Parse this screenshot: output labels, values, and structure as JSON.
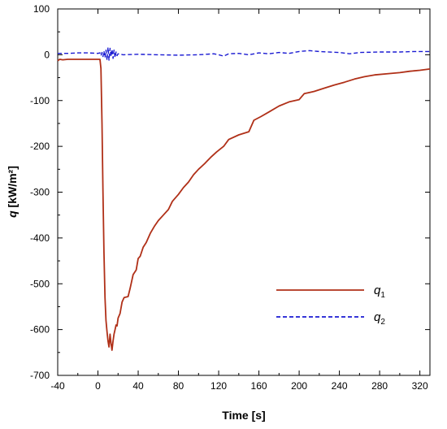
{
  "chart_data": {
    "type": "line",
    "title": "",
    "xlabel": "Time [s]",
    "ylabel_var": "q",
    "ylabel_unit": " [kW/m²]",
    "xlim": [
      -40,
      330
    ],
    "ylim": [
      -700,
      100
    ],
    "x_ticks": [
      -40,
      0,
      40,
      80,
      120,
      160,
      200,
      240,
      280,
      320
    ],
    "y_ticks": [
      100,
      0,
      -100,
      -200,
      -300,
      -400,
      -500,
      -600,
      -700
    ],
    "grid": false,
    "legend_position": "lower-right",
    "series": [
      {
        "name": "q",
        "name_sub": "1",
        "color": "#b03018",
        "dash": "solid",
        "points": [
          [
            -40,
            -13
          ],
          [
            -38,
            -10
          ],
          [
            -35,
            -11
          ],
          [
            -30,
            -10
          ],
          [
            -20,
            -10
          ],
          [
            -10,
            -10
          ],
          [
            0,
            -10
          ],
          [
            2,
            -10
          ],
          [
            3,
            -30
          ],
          [
            4,
            -150
          ],
          [
            5,
            -300
          ],
          [
            6,
            -430
          ],
          [
            7,
            -530
          ],
          [
            8,
            -580
          ],
          [
            9,
            -605
          ],
          [
            10,
            -625
          ],
          [
            11,
            -638
          ],
          [
            12,
            -610
          ],
          [
            13,
            -630
          ],
          [
            14,
            -645
          ],
          [
            15,
            -625
          ],
          [
            16,
            -610
          ],
          [
            17,
            -600
          ],
          [
            18,
            -590
          ],
          [
            19,
            -592
          ],
          [
            20,
            -575
          ],
          [
            22,
            -565
          ],
          [
            24,
            -540
          ],
          [
            26,
            -530
          ],
          [
            30,
            -528
          ],
          [
            32,
            -510
          ],
          [
            35,
            -480
          ],
          [
            38,
            -470
          ],
          [
            40,
            -445
          ],
          [
            42,
            -440
          ],
          [
            45,
            -420
          ],
          [
            48,
            -410
          ],
          [
            52,
            -390
          ],
          [
            56,
            -375
          ],
          [
            60,
            -362
          ],
          [
            65,
            -350
          ],
          [
            70,
            -338
          ],
          [
            74,
            -320
          ],
          [
            80,
            -305
          ],
          [
            85,
            -290
          ],
          [
            90,
            -278
          ],
          [
            95,
            -262
          ],
          [
            100,
            -250
          ],
          [
            106,
            -238
          ],
          [
            112,
            -224
          ],
          [
            118,
            -212
          ],
          [
            125,
            -200
          ],
          [
            130,
            -185
          ],
          [
            140,
            -175
          ],
          [
            150,
            -168
          ],
          [
            155,
            -143
          ],
          [
            162,
            -135
          ],
          [
            170,
            -125
          ],
          [
            180,
            -112
          ],
          [
            190,
            -103
          ],
          [
            200,
            -98
          ],
          [
            205,
            -85
          ],
          [
            215,
            -80
          ],
          [
            225,
            -73
          ],
          [
            235,
            -66
          ],
          [
            245,
            -60
          ],
          [
            255,
            -53
          ],
          [
            265,
            -48
          ],
          [
            275,
            -44
          ],
          [
            290,
            -41
          ],
          [
            300,
            -39
          ],
          [
            310,
            -36
          ],
          [
            320,
            -34
          ],
          [
            330,
            -31
          ]
        ]
      },
      {
        "name": "q",
        "name_sub": "2",
        "color": "#1a1ad2",
        "dash": "dashed",
        "points": [
          [
            -40,
            3
          ],
          [
            -30,
            3
          ],
          [
            -20,
            4
          ],
          [
            -10,
            4
          ],
          [
            0,
            3
          ],
          [
            2,
            4
          ],
          [
            3,
            -2
          ],
          [
            4,
            5
          ],
          [
            5,
            -4
          ],
          [
            6,
            8
          ],
          [
            7,
            -6
          ],
          [
            8,
            10
          ],
          [
            9,
            -12
          ],
          [
            10,
            16
          ],
          [
            11,
            -12
          ],
          [
            12,
            14
          ],
          [
            13,
            -4
          ],
          [
            14,
            12
          ],
          [
            15,
            -8
          ],
          [
            16,
            10
          ],
          [
            17,
            -6
          ],
          [
            18,
            6
          ],
          [
            19,
            -2
          ],
          [
            20,
            2
          ],
          [
            25,
            0
          ],
          [
            40,
            1
          ],
          [
            60,
            0
          ],
          [
            80,
            -1
          ],
          [
            100,
            0
          ],
          [
            115,
            2
          ],
          [
            120,
            0
          ],
          [
            125,
            -3
          ],
          [
            130,
            2
          ],
          [
            140,
            3
          ],
          [
            150,
            0
          ],
          [
            160,
            4
          ],
          [
            170,
            2
          ],
          [
            180,
            5
          ],
          [
            190,
            3
          ],
          [
            200,
            7
          ],
          [
            210,
            9
          ],
          [
            220,
            7
          ],
          [
            240,
            5
          ],
          [
            250,
            2
          ],
          [
            260,
            5
          ],
          [
            280,
            6
          ],
          [
            300,
            6
          ],
          [
            315,
            7
          ],
          [
            330,
            7
          ]
        ]
      }
    ]
  }
}
